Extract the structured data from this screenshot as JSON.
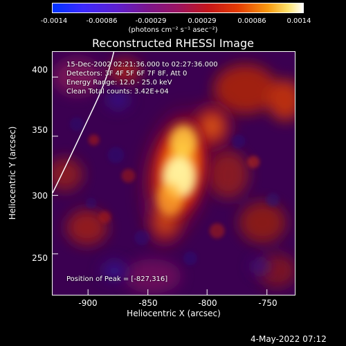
{
  "colorbar": {
    "tick_labels": [
      "-0.0014",
      "-0.00086",
      "-0.00029",
      "0.00029",
      "0.00086",
      "0.0014"
    ],
    "units": "(photons cm⁻² s⁻¹ asec⁻²)"
  },
  "title": "Reconstructed RHESSI Image",
  "overlay": {
    "line1": "15-Dec-2002 02:21:36.000 to 02:27:36.000",
    "line2": "Detectors: 3F 4F 5F 6F 7F 8F, Att 0",
    "line3": "Energy Range: 12.0 - 25.0 keV",
    "line4": "Clean    Total counts: 3.42E+04",
    "peak": "Position of Peak = [-827,316]"
  },
  "axes": {
    "x_title": "Heliocentric X (arcsec)",
    "y_title": "Heliocentric Y (arcsec)",
    "x_ticks": [
      "-900",
      "-850",
      "-800",
      "-750"
    ],
    "y_ticks": [
      "400",
      "350",
      "300",
      "250"
    ]
  },
  "footer": "4-May-2022 07:12",
  "image_meta": {
    "colormap": "blue-purple-red-yellow-white",
    "background": "#000000",
    "foreground": "#ffffff"
  }
}
